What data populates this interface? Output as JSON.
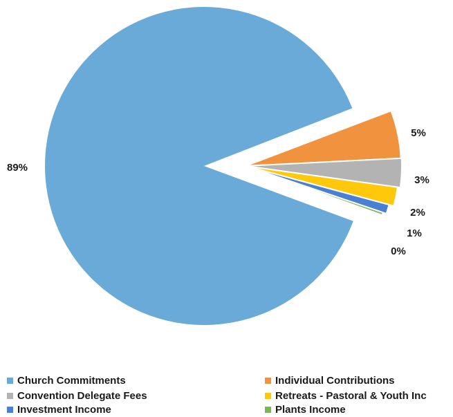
{
  "chart_data": {
    "type": "pie",
    "title": "",
    "slices": [
      {
        "label": "Church Commitments",
        "value": 89,
        "value_label": "89%",
        "color": "#6aaad9"
      },
      {
        "label": "Individual Contributions",
        "value": 5,
        "value_label": "5%",
        "color": "#f0923e"
      },
      {
        "label": "Convention Delegate Fees",
        "value": 3,
        "value_label": "3%",
        "color": "#b3b3b3"
      },
      {
        "label": "Retreats - Pastoral & Youth Inc",
        "value": 2,
        "value_label": "2%",
        "color": "#ffc80a"
      },
      {
        "label": "Investment Income",
        "value": 1,
        "value_label": "1%",
        "color": "#4b7fd2"
      },
      {
        "label": "Plants Income",
        "value": 0.3,
        "value_label": "0%",
        "color": "#7cb55a"
      }
    ],
    "exploded": [
      "Individual Contributions",
      "Convention Delegate Fees",
      "Retreats - Pastoral & Youth Inc",
      "Investment Income",
      "Plants Income"
    ],
    "legend_position": "bottom"
  }
}
